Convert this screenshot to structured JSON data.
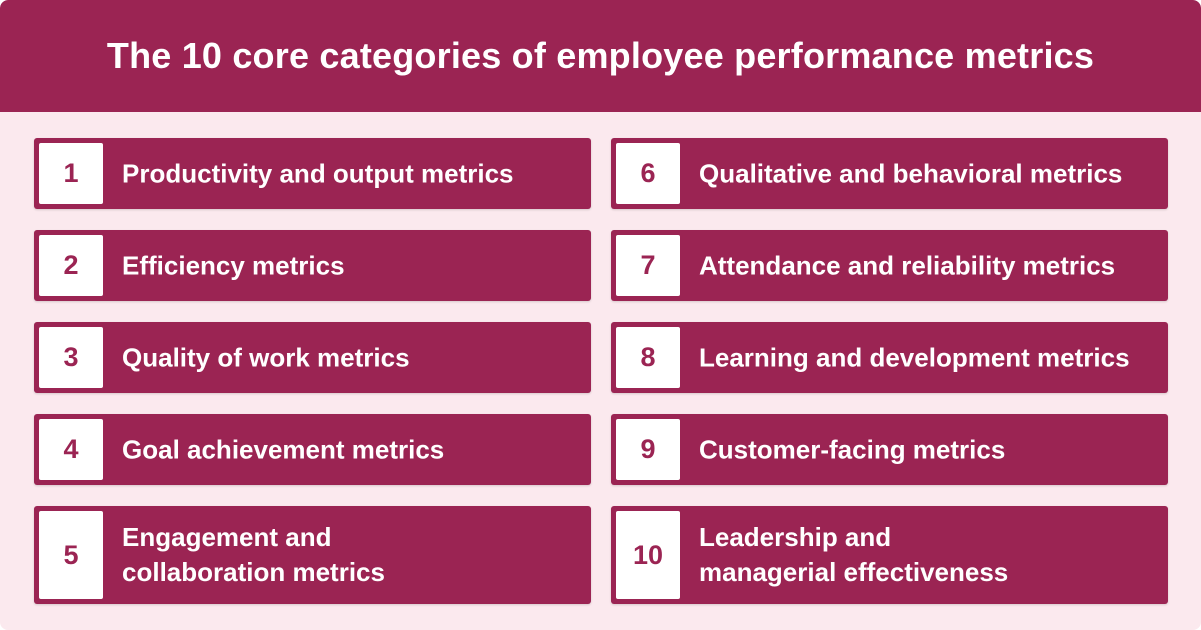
{
  "title": "The 10 core categories of employee performance metrics",
  "colors": {
    "accent": "#9b2453",
    "background": "#fbe9ee",
    "text_on_accent": "#ffffff"
  },
  "categories": [
    {
      "number": "1",
      "label": "Productivity and output metrics"
    },
    {
      "number": "2",
      "label": "Efficiency metrics"
    },
    {
      "number": "3",
      "label": "Quality of work metrics"
    },
    {
      "number": "4",
      "label": "Goal achievement metrics"
    },
    {
      "number": "5",
      "label": "Engagement and\ncollaboration metrics"
    },
    {
      "number": "6",
      "label": "Qualitative and behavioral metrics"
    },
    {
      "number": "7",
      "label": "Attendance and reliability metrics"
    },
    {
      "number": "8",
      "label": "Learning and development metrics"
    },
    {
      "number": "9",
      "label": "Customer-facing metrics"
    },
    {
      "number": "10",
      "label": "Leadership and\nmanagerial effectiveness"
    }
  ]
}
